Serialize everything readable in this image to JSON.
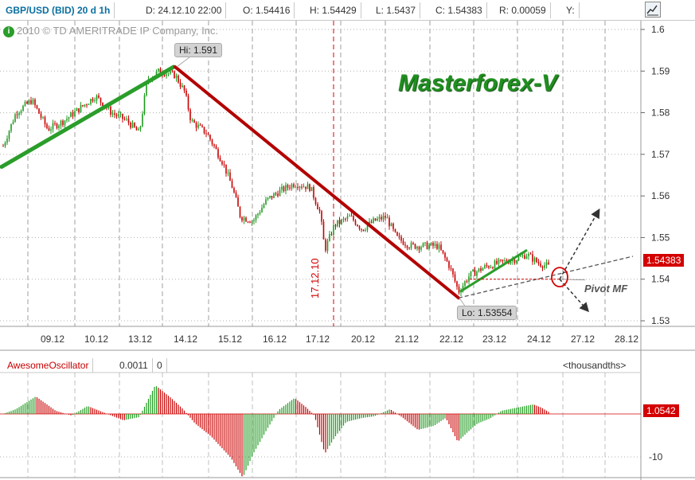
{
  "header": {
    "symbol": "GBP/USD (BID) 20 d 1h",
    "date": "D: 24.12.10 22:00",
    "open": "O: 1.54416",
    "high": "H: 1.54429",
    "low": "L: 1.5437",
    "close": "C: 1.54383",
    "range": "R: 0.00059",
    "y": "Y:"
  },
  "icons": {
    "chart_button": "chart-line-icon",
    "info": "info-icon"
  },
  "copyright": "2010 © TD AMERITRADE IP Company, Inc.",
  "brand": "Masterforex-V",
  "callouts": {
    "high": "Hi: 1.591",
    "low": "Lo: 1.53554"
  },
  "pivot_label": "Pivot MF",
  "marker_date": "17.12.10",
  "price_tag": "1.54383",
  "colors": {
    "up": "#1f9a1f",
    "down": "#c80000",
    "trend_down": "#b30000",
    "trend_up": "#2a9d2a",
    "grid": "#888888",
    "accent": "#d40000"
  },
  "oscillator": {
    "name": "AwesomeOscillator",
    "value": "0.0011",
    "extra": "0",
    "unit": "<thousandths>",
    "price_tag": "1.0542",
    "y_ticks": [
      "-10"
    ]
  },
  "chart_data": {
    "type": "candlestick",
    "x_ticks": [
      "09.12",
      "10.12",
      "13.12",
      "14.12",
      "15.12",
      "16.12",
      "17.12",
      "20.12",
      "21.12",
      "22.12",
      "23.12",
      "24.12",
      "27.12",
      "28.12"
    ],
    "y_ticks": [
      "1.6",
      "1.59",
      "1.58",
      "1.57",
      "1.56",
      "1.55",
      "1.54",
      "1.53"
    ],
    "ylim": [
      1.527,
      1.602
    ],
    "key_points": {
      "high": 1.591,
      "low": 1.53554,
      "last": 1.54383
    }
  }
}
